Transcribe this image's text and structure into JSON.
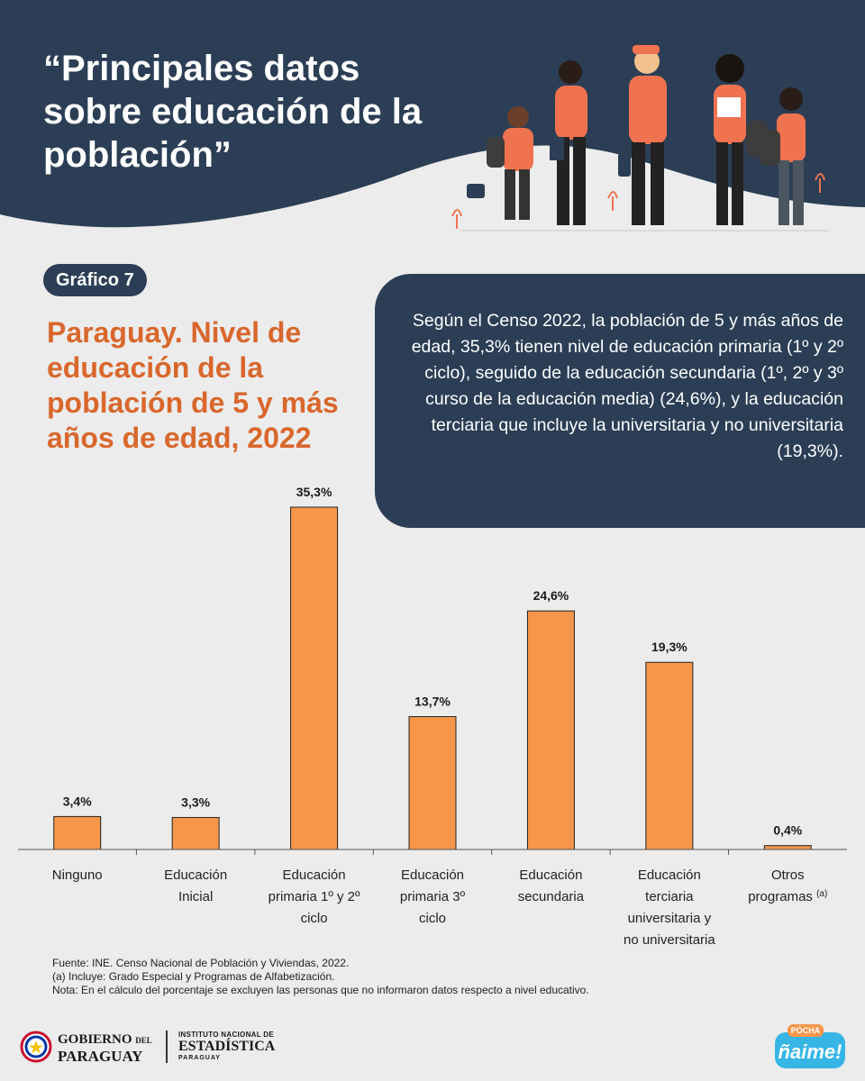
{
  "header": {
    "title": "“Principales datos sobre educación de la población”"
  },
  "badge": "Gráfico 7",
  "chart_title": "Paraguay. Nivel de educación de la población de 5 y más años de edad, 2022",
  "info_text": "Según el Censo 2022, la población de 5 y más años de edad, 35,3% tienen nivel de educación primaria (1º y 2º ciclo), seguido de la educación secundaria (1º, 2º y 3º curso de la educación media) (24,6%), y la educación terciaria que incluye la universitaria y no universitaria (19,3%).",
  "chart_data": {
    "type": "bar",
    "categories": [
      [
        "Ninguno"
      ],
      [
        "Educación",
        "Inicial"
      ],
      [
        "Educación",
        "primaria 1º y 2º",
        "ciclo"
      ],
      [
        "Educación",
        "primaria  3º",
        "ciclo"
      ],
      [
        "Educación",
        "secundaria"
      ],
      [
        "Educación",
        "terciaria",
        "universitaria y",
        "no universitaria"
      ],
      [
        "Otros",
        "programas"
      ]
    ],
    "category_note": [
      "",
      "",
      "",
      "",
      "",
      "",
      "(a)"
    ],
    "values": [
      3.4,
      3.3,
      35.3,
      13.7,
      24.6,
      19.3,
      0.4
    ],
    "value_labels": [
      "3,4%",
      "3,3%",
      "35,3%",
      "13,7%",
      "24,6%",
      "19,3%",
      "0,4%"
    ],
    "ylim": [
      0,
      35.3
    ],
    "bar_color": "#f5964a",
    "grid": false
  },
  "notes": [
    "Fuente: INE. Censo Nacional de Población y Viviendas, 2022.",
    "(a) Incluye: Grado Especial y Programas de Alfabetización.",
    "Nota: En el cálculo del porcentaje se excluyen las personas que no informaron datos respecto a nivel educativo."
  ],
  "footer": {
    "gov_line1": "GOBIERNO",
    "gov_del": "DEL",
    "gov_line2": "PARAGUAY",
    "ine_line1": "INSTITUTO NACIONAL DE",
    "ine_line2": "ESTADÍSTICA",
    "ine_line3": "PARAGUAY",
    "logo_top": "PÓCHA",
    "logo_main": "ñaime!"
  },
  "colors": {
    "navy": "#2b3e55",
    "orange_title": "#d9672c",
    "bar": "#f5964a",
    "background": "#ececec"
  }
}
